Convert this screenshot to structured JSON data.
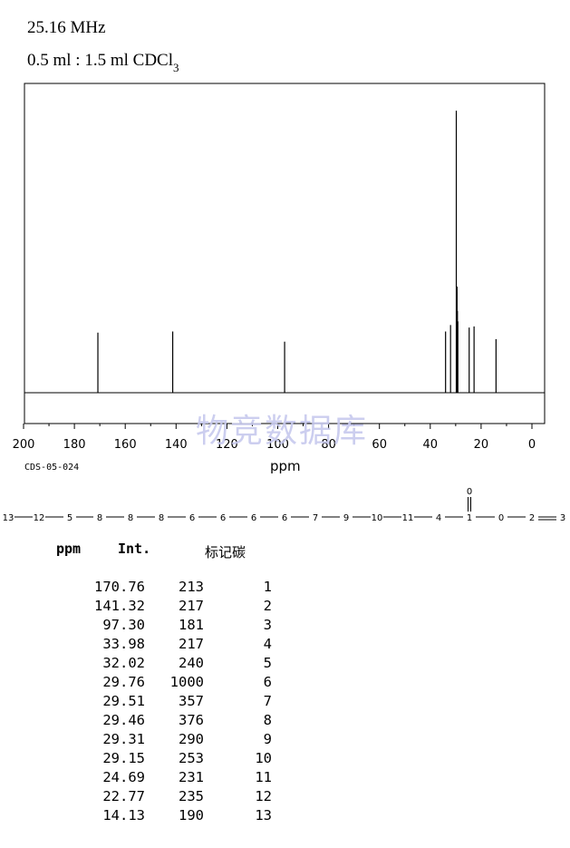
{
  "header": {
    "frequency": "25.16 MHz",
    "solvent_main": "0.5 ml : 1.5 ml CDCl",
    "solvent_sub": "3"
  },
  "watermark": "物竞数据库",
  "spectrum_code": "CDS-05-024",
  "chart_data": {
    "type": "bar",
    "xlabel": "ppm",
    "xlim": [
      200,
      0
    ],
    "x_ticks": [
      200,
      180,
      160,
      140,
      120,
      100,
      80,
      60,
      40,
      20,
      0
    ],
    "ylim": [
      0,
      1000
    ],
    "grid": false,
    "peaks": [
      {
        "ppm": 170.76,
        "intensity": 213
      },
      {
        "ppm": 141.32,
        "intensity": 217
      },
      {
        "ppm": 97.3,
        "intensity": 181
      },
      {
        "ppm": 33.98,
        "intensity": 217
      },
      {
        "ppm": 32.02,
        "intensity": 240
      },
      {
        "ppm": 29.76,
        "intensity": 1000
      },
      {
        "ppm": 29.51,
        "intensity": 357
      },
      {
        "ppm": 29.46,
        "intensity": 376
      },
      {
        "ppm": 29.31,
        "intensity": 290
      },
      {
        "ppm": 29.15,
        "intensity": 253
      },
      {
        "ppm": 24.69,
        "intensity": 231
      },
      {
        "ppm": 22.77,
        "intensity": 235
      },
      {
        "ppm": 14.13,
        "intensity": 190
      }
    ]
  },
  "structure": {
    "chain_labels": [
      "13",
      "12",
      "5",
      "8",
      "8",
      "8",
      "6",
      "6",
      "6",
      "6",
      "7",
      "9",
      "10",
      "11",
      "4",
      "1",
      "0",
      "2",
      "3"
    ],
    "carbonyl_o": "0"
  },
  "table": {
    "headers": {
      "ppm": "ppm",
      "int": "Int.",
      "assign": "标记碳"
    },
    "rows": [
      {
        "ppm": "170.76",
        "int": "213",
        "assign": "1"
      },
      {
        "ppm": "141.32",
        "int": "217",
        "assign": "2"
      },
      {
        "ppm": "97.30",
        "int": "181",
        "assign": "3"
      },
      {
        "ppm": "33.98",
        "int": "217",
        "assign": "4"
      },
      {
        "ppm": "32.02",
        "int": "240",
        "assign": "5"
      },
      {
        "ppm": "29.76",
        "int": "1000",
        "assign": "6"
      },
      {
        "ppm": "29.51",
        "int": "357",
        "assign": "7"
      },
      {
        "ppm": "29.46",
        "int": "376",
        "assign": "8"
      },
      {
        "ppm": "29.31",
        "int": "290",
        "assign": "9"
      },
      {
        "ppm": "29.15",
        "int": "253",
        "assign": "10"
      },
      {
        "ppm": "24.69",
        "int": "231",
        "assign": "11"
      },
      {
        "ppm": "22.77",
        "int": "235",
        "assign": "12"
      },
      {
        "ppm": "14.13",
        "int": "190",
        "assign": "13"
      }
    ]
  }
}
